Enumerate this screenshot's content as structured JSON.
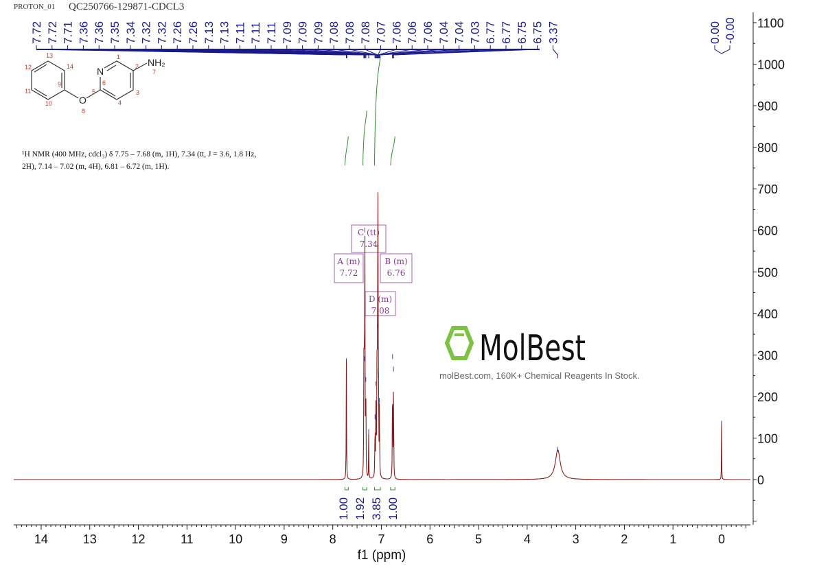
{
  "header": {
    "experiment": "PROTON_01",
    "sample": "QC250766-129871-CDCL3"
  },
  "description": {
    "line1": "¹H NMR (400 MHz, cdcl₃) δ 7.75 – 7.68 (m, 1H), 7.34 (tt, J = 3.6, 1.8 Hz,",
    "line2": "2H), 7.14 – 7.02 (m, 4H), 6.81 – 6.72 (m, 1H)."
  },
  "structure": {
    "atoms": [
      "1",
      "2",
      "3",
      "4",
      "5",
      "6",
      "7",
      "8",
      "9",
      "10",
      "11",
      "12",
      "13",
      "14"
    ],
    "elements": {
      "N": "N",
      "O": "O",
      "NH2": "NH₂"
    }
  },
  "watermark": {
    "brand": "MolBest",
    "tagline": "molBest.com, 160K+ Chemical Reagents In Stock."
  },
  "colors": {
    "spectrum": "#8b1a1a",
    "peak_labels": "#1a1a8c",
    "integral": "#2e8b2e",
    "multiplet": "#8a3a9a",
    "brand_green": "#7dc242"
  },
  "chart_data": {
    "type": "line",
    "title": "",
    "xlabel": "f1 (ppm)",
    "ylabel": "",
    "xlim": [
      14.55,
      -0.6
    ],
    "ylim": [
      -110,
      1125
    ],
    "x_ticks": [
      14,
      13,
      12,
      11,
      10,
      9,
      8,
      7,
      6,
      5,
      4,
      3,
      2,
      1,
      0
    ],
    "y_ticks": [
      0,
      100,
      200,
      300,
      400,
      500,
      600,
      700,
      800,
      900,
      1000,
      1100
    ],
    "peaks": [
      {
        "ppm": 7.72,
        "height": 285,
        "width": 0.004
      },
      {
        "ppm": 7.36,
        "height": 250,
        "width": 0.004
      },
      {
        "ppm": 7.35,
        "height": 290,
        "width": 0.004
      },
      {
        "ppm": 7.34,
        "height": 600,
        "width": 0.004
      },
      {
        "ppm": 7.32,
        "height": 240,
        "width": 0.004
      },
      {
        "ppm": 7.26,
        "height": 115,
        "width": 0.003
      },
      {
        "ppm": 7.13,
        "height": 150,
        "width": 0.004
      },
      {
        "ppm": 7.11,
        "height": 230,
        "width": 0.004
      },
      {
        "ppm": 7.09,
        "height": 260,
        "width": 0.004
      },
      {
        "ppm": 7.08,
        "height": 370,
        "width": 0.004
      },
      {
        "ppm": 7.07,
        "height": 590,
        "width": 0.004
      },
      {
        "ppm": 7.06,
        "height": 250,
        "width": 0.004
      },
      {
        "ppm": 7.04,
        "height": 190,
        "width": 0.004
      },
      {
        "ppm": 6.77,
        "height": 295,
        "width": 0.004
      },
      {
        "ppm": 6.75,
        "height": 265,
        "width": 0.004
      },
      {
        "ppm": 3.37,
        "height": 72,
        "width": 0.06
      },
      {
        "ppm": 0.0,
        "height": 135,
        "width": 0.003
      }
    ],
    "peak_labels": [
      "7.72",
      "7.72",
      "7.71",
      "7.36",
      "7.36",
      "7.35",
      "7.34",
      "7.32",
      "7.32",
      "7.26",
      "7.26",
      "7.13",
      "7.13",
      "7.11",
      "7.11",
      "7.11",
      "7.09",
      "7.09",
      "7.09",
      "7.08",
      "7.08",
      "7.08",
      "7.07",
      "7.06",
      "7.06",
      "7.06",
      "7.04",
      "7.04",
      "7.03",
      "6.77",
      "6.77",
      "6.75",
      "6.75",
      "3.37"
    ],
    "tms_labels": [
      "0.00",
      "-0.00"
    ],
    "integrals": [
      {
        "from": 7.75,
        "to": 7.68,
        "value": "1.00",
        "rel": 1.0
      },
      {
        "from": 7.38,
        "to": 7.3,
        "value": "1.92",
        "rel": 1.92
      },
      {
        "from": 7.14,
        "to": 7.02,
        "value": "3.85",
        "rel": 3.85
      },
      {
        "from": 6.81,
        "to": 6.72,
        "value": "1.00",
        "rel": 1.0
      }
    ],
    "multiplets": [
      {
        "id": "A (m)",
        "shift": "7.72",
        "ppm": 7.72
      },
      {
        "id": "C (tt)",
        "shift": "7.34",
        "ppm": 7.34
      },
      {
        "id": "B (m)",
        "shift": "6.76",
        "ppm": 6.76
      },
      {
        "id": "D (m)",
        "shift": "7.08",
        "ppm": 7.08
      }
    ]
  }
}
